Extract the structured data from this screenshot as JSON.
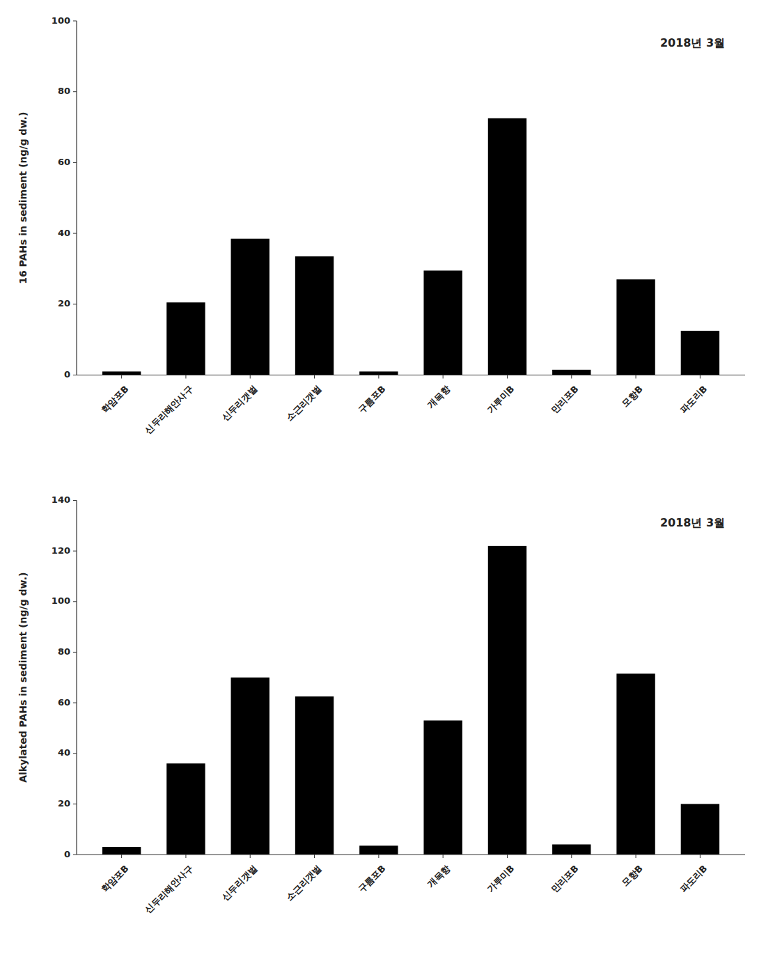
{
  "chart_data": [
    {
      "type": "bar",
      "title": "2018년 3월",
      "ylabel": "16 PAHs in sediment (ng/g dw.)",
      "categories": [
        "학암포B",
        "신두리해안사구",
        "신두리갯벌",
        "소근리갯벌",
        "구름포B",
        "개목항",
        "가루미B",
        "만리포B",
        "모항B",
        "파도리B"
      ],
      "values": [
        1.0,
        20.5,
        38.5,
        33.5,
        1.0,
        29.5,
        72.5,
        1.5,
        27.0,
        12.5
      ],
      "color": "#000000",
      "ylim": [
        0,
        100
      ],
      "yticks": [
        0,
        20,
        40,
        60,
        80,
        100
      ],
      "grid": false
    },
    {
      "type": "bar",
      "title": "2018년 3월",
      "ylabel": "Alkylated PAHs in sediment (ng/g dw.)",
      "categories": [
        "학암포B",
        "신두리해안사구",
        "신두리갯벌",
        "소근리갯벌",
        "구름포B",
        "개목항",
        "가루미B",
        "만리포B",
        "모항B",
        "파도리B"
      ],
      "values": [
        3.0,
        36.0,
        70.0,
        62.5,
        3.5,
        53.0,
        122.0,
        4.0,
        71.5,
        20.0
      ],
      "color": "#000000",
      "ylim": [
        0,
        140
      ],
      "yticks": [
        0,
        20,
        40,
        60,
        80,
        100,
        120,
        140
      ],
      "grid": false
    }
  ]
}
